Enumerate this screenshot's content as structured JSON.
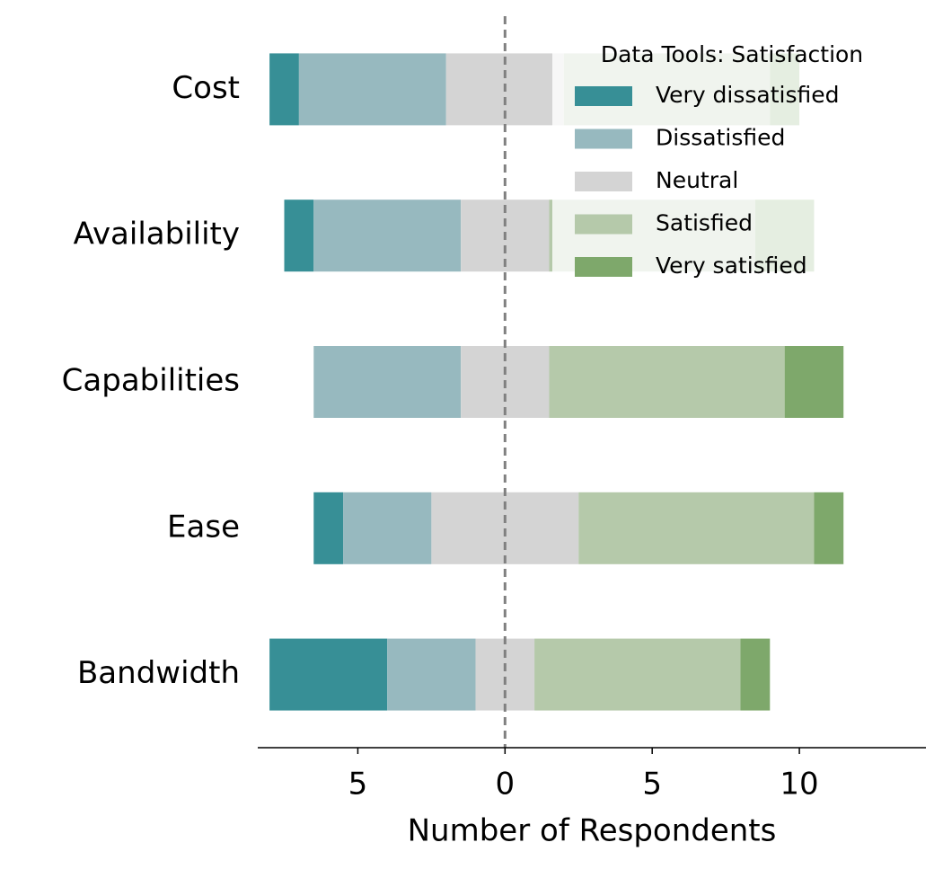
{
  "chart_data": {
    "type": "diverging_bar",
    "categories": [
      "Cost",
      "Availability",
      "Capabilities",
      "Ease",
      "Bandwidth"
    ],
    "series": [
      {
        "name": "Very dissatisfied",
        "color": "#378f96",
        "values": [
          1,
          1,
          0,
          1,
          4
        ]
      },
      {
        "name": "Dissatisfied",
        "color": "#97b9bf",
        "values": [
          5,
          5,
          5,
          3,
          3
        ]
      },
      {
        "name": "Neutral",
        "color": "#d4d4d4",
        "values": [
          4,
          3,
          3,
          5,
          2
        ]
      },
      {
        "name": "Satisfied",
        "color": "#b5c9aa",
        "values": [
          7,
          7,
          8,
          8,
          7
        ]
      },
      {
        "name": "Very satisfied",
        "color": "#7ea86b",
        "values": [
          1,
          2,
          2,
          1,
          1
        ]
      }
    ],
    "xlabel": "Number of Respondents",
    "legend_title": "Data Tools: Satisfaction",
    "legend": "upper right",
    "xlim": [
      -8.4,
      14.3
    ],
    "xticks": [
      {
        "value": -5,
        "label": "5"
      },
      0,
      5,
      10
    ]
  }
}
